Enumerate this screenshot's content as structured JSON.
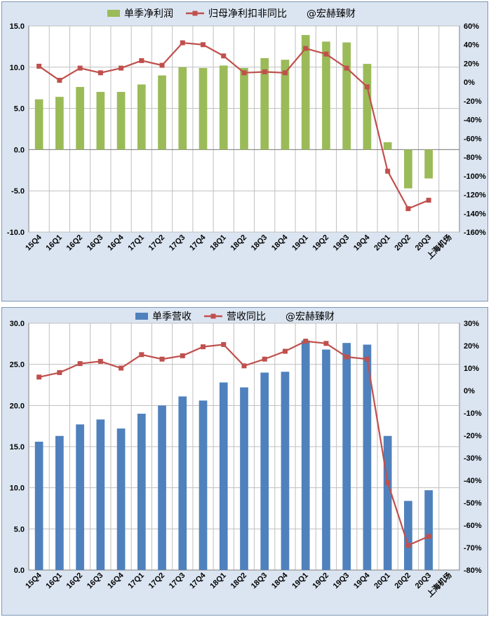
{
  "chart_data": [
    {
      "type": "bar+line",
      "categories": [
        "15Q4",
        "16Q1",
        "16Q2",
        "16Q3",
        "16Q4",
        "17Q1",
        "17Q2",
        "17Q3",
        "17Q4",
        "18Q1",
        "18Q2",
        "18Q3",
        "18Q4",
        "19Q1",
        "19Q2",
        "19Q3",
        "19Q4",
        "20Q1",
        "20Q2",
        "20Q3",
        "上海机场"
      ],
      "series": [
        {
          "name": "单季净利润",
          "kind": "bar",
          "axis": "left",
          "color": "#9bbb59",
          "values": [
            6.1,
            6.4,
            7.6,
            7.0,
            7.0,
            7.9,
            9.0,
            10.0,
            9.9,
            10.2,
            9.9,
            11.1,
            10.9,
            13.9,
            13.1,
            13.0,
            10.4,
            0.9,
            -4.7,
            -3.5,
            null
          ]
        },
        {
          "name": "归母净利扣非同比",
          "kind": "line",
          "axis": "right",
          "color": "#c0504d",
          "values": [
            17,
            2,
            15,
            10,
            15,
            23,
            18,
            42,
            40,
            28,
            10,
            11,
            10,
            36,
            30,
            15,
            -5,
            -95,
            -135,
            -126,
            null
          ]
        }
      ],
      "legend_extra": "@宏赫臻财",
      "y_left": {
        "min": -10,
        "max": 15,
        "step": 5,
        "ticks": [
          "15.0",
          "10.0",
          "5.0",
          "0.0",
          "-5.0",
          "-10.0"
        ]
      },
      "y_right": {
        "min": -160,
        "max": 60,
        "step": 20,
        "ticks": [
          "60%",
          "40%",
          "20%",
          "0%",
          "-20%",
          "-40%",
          "-60%",
          "-80%",
          "-100%",
          "-120%",
          "-140%",
          "-160%"
        ]
      },
      "grid": true,
      "legend_position": "top"
    },
    {
      "type": "bar+line",
      "categories": [
        "15Q4",
        "16Q1",
        "16Q2",
        "16Q3",
        "16Q4",
        "17Q1",
        "17Q2",
        "17Q3",
        "17Q4",
        "18Q1",
        "18Q2",
        "18Q3",
        "18Q4",
        "19Q1",
        "19Q2",
        "19Q3",
        "19Q4",
        "20Q1",
        "20Q2",
        "20Q3",
        "上海机场"
      ],
      "series": [
        {
          "name": "单季营收",
          "kind": "bar",
          "axis": "left",
          "color": "#4f81bd",
          "values": [
            15.6,
            16.3,
            17.7,
            18.3,
            17.2,
            19.0,
            20.0,
            21.1,
            20.6,
            22.8,
            22.2,
            24.0,
            24.1,
            27.9,
            26.8,
            27.6,
            27.4,
            16.3,
            8.4,
            9.7,
            null
          ]
        },
        {
          "name": "营收同比",
          "kind": "line",
          "axis": "right",
          "color": "#c0504d",
          "values": [
            6,
            8,
            12,
            13,
            10,
            16,
            14,
            15.5,
            19.5,
            20.5,
            11,
            14,
            17.5,
            22,
            21,
            15,
            14,
            -41,
            -69,
            -65,
            null
          ]
        }
      ],
      "legend_extra": "@宏赫臻财",
      "y_left": {
        "min": 0,
        "max": 30,
        "step": 5,
        "ticks": [
          "30.0",
          "25.0",
          "20.0",
          "15.0",
          "10.0",
          "5.0",
          "0.0"
        ]
      },
      "y_right": {
        "min": -80,
        "max": 30,
        "step": 10,
        "ticks": [
          "30%",
          "20%",
          "10%",
          "0%",
          "-10%",
          "-20%",
          "-30%",
          "-40%",
          "-50%",
          "-60%",
          "-70%",
          "-80%"
        ]
      },
      "grid": true,
      "legend_position": "top"
    }
  ]
}
